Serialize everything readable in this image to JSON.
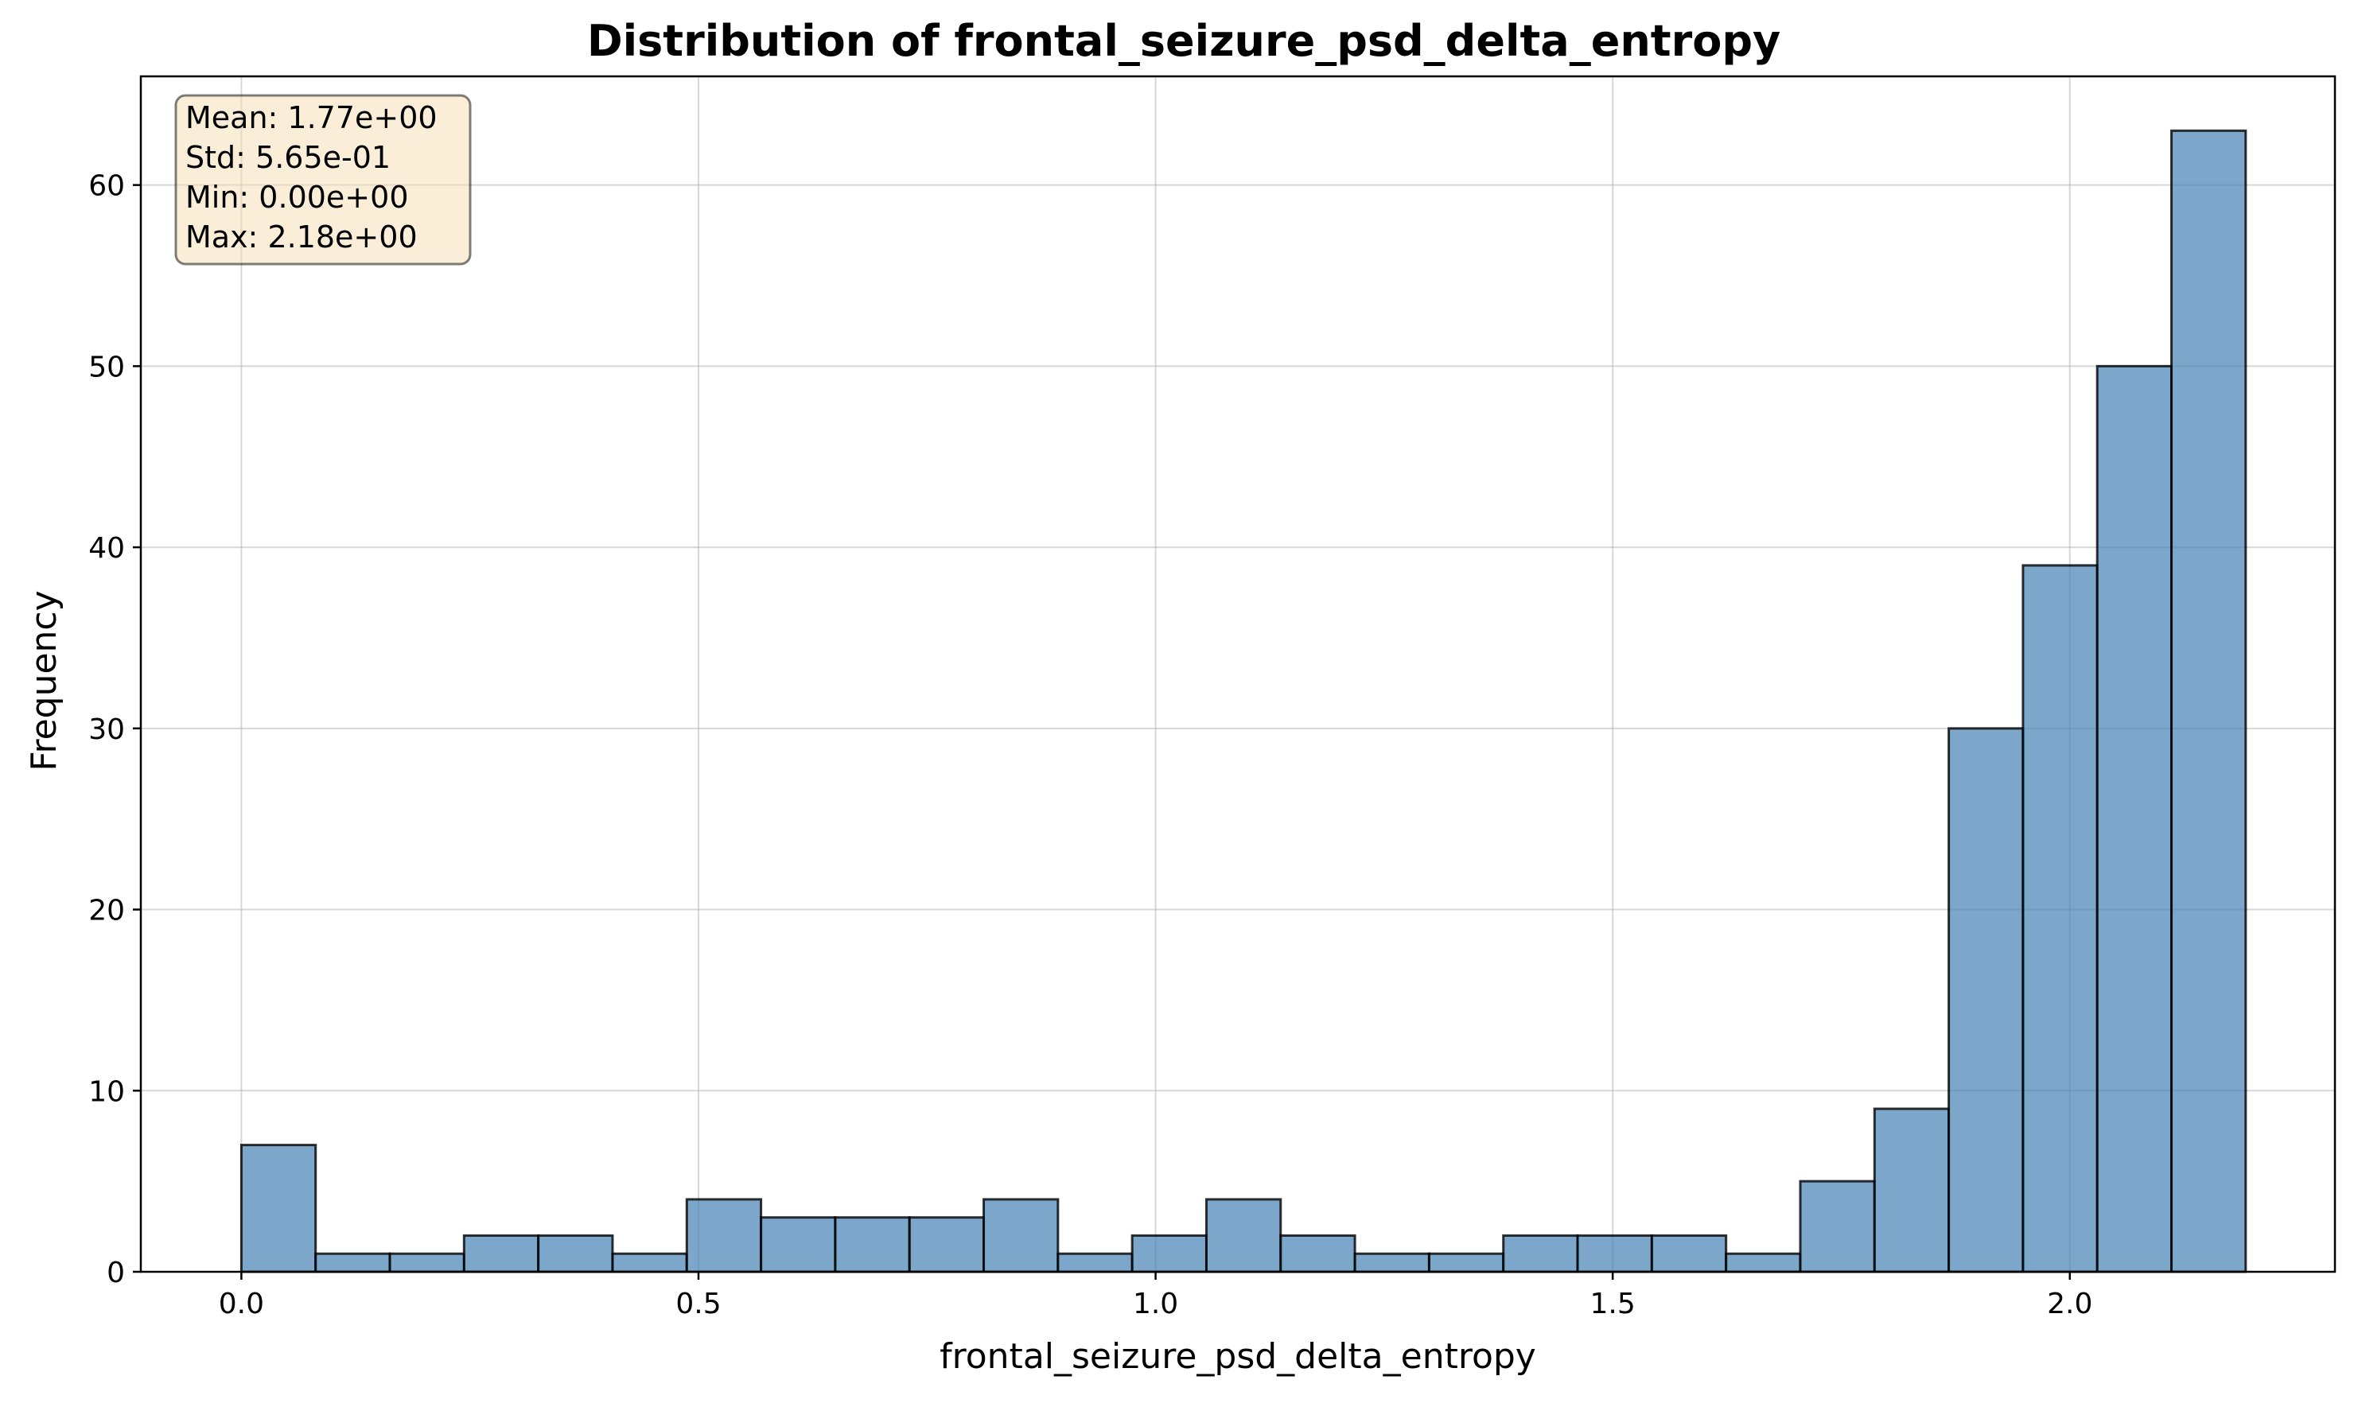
{
  "chart_data": {
    "type": "bar",
    "title": "Distribution of frontal_seizure_psd_delta_entropy",
    "xlabel": "frontal_seizure_psd_delta_entropy",
    "ylabel": "Frequency",
    "bin_start": 0.0,
    "bin_width": 0.0812,
    "values": [
      7,
      1,
      1,
      2,
      2,
      1,
      4,
      3,
      3,
      3,
      4,
      1,
      2,
      4,
      2,
      1,
      1,
      2,
      2,
      2,
      1,
      5,
      9,
      30,
      39,
      50,
      63
    ],
    "xlim": [
      -0.11,
      2.29
    ],
    "ylim": [
      0,
      66
    ],
    "xticks": [
      0.0,
      0.5,
      1.0,
      1.5,
      2.0
    ],
    "xtick_labels": [
      "0.0",
      "0.5",
      "1.0",
      "1.5",
      "2.0"
    ],
    "yticks": [
      0,
      10,
      20,
      30,
      40,
      50,
      60
    ],
    "ytick_labels": [
      "0",
      "10",
      "20",
      "30",
      "40",
      "50",
      "60"
    ],
    "grid": true,
    "colors": {
      "bar_fill": "#4682b4",
      "bar_edge": "#000000",
      "grid": "#b0b0b0",
      "stats_box_fill": "#f5deb3",
      "stats_box_edge": "#000000"
    },
    "stats_box": {
      "position": "top-left",
      "lines": [
        "Mean: 1.77e+00",
        "Std: 5.65e-01",
        "Min: 0.00e+00",
        "Max: 2.18e+00"
      ]
    }
  }
}
